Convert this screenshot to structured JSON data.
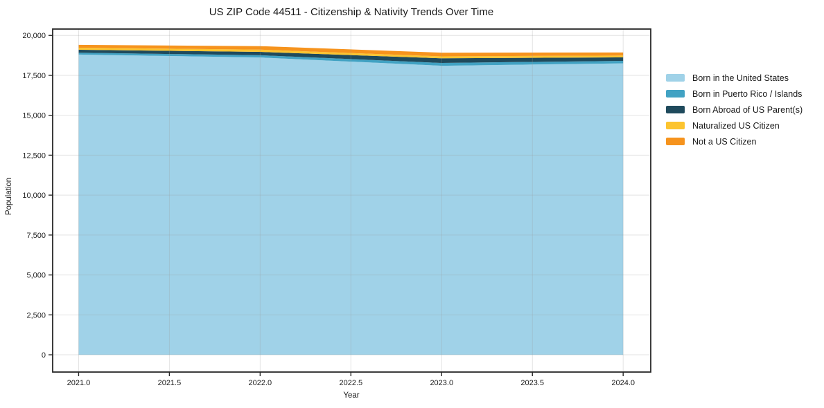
{
  "chart_data": {
    "type": "area",
    "stacked": true,
    "title": "US ZIP Code 44511 - Citizenship & Nativity Trends Over Time",
    "xlabel": "Year",
    "ylabel": "Population",
    "x": [
      2021,
      2022,
      2023,
      2024
    ],
    "series": [
      {
        "name": "Born in the United States",
        "color": "#a0d2e8",
        "values": [
          18800,
          18620,
          18100,
          18250
        ]
      },
      {
        "name": "Born in Puerto Rico / Islands",
        "color": "#41a2c3",
        "values": [
          120,
          140,
          180,
          160
        ]
      },
      {
        "name": "Born Abroad of US Parent(s)",
        "color": "#1f4a5c",
        "values": [
          180,
          210,
          290,
          220
        ]
      },
      {
        "name": "Naturalized US Citizen",
        "color": "#fcc42f",
        "values": [
          130,
          140,
          120,
          110
        ]
      },
      {
        "name": "Not a US Citizen",
        "color": "#f6931d",
        "values": [
          180,
          220,
          230,
          190
        ]
      }
    ],
    "xlim": [
      2020.857,
      2024.152
    ],
    "ylim": [
      -1080,
      20400
    ],
    "xticks": {
      "values": [
        2021.0,
        2021.5,
        2022.0,
        2022.5,
        2023.0,
        2023.5,
        2024.0
      ],
      "labels": [
        "2021.0",
        "2021.5",
        "2022.0",
        "2022.5",
        "2023.0",
        "2023.5",
        "2024.0"
      ]
    },
    "yticks": {
      "values": [
        0,
        2500,
        5000,
        7500,
        10000,
        12500,
        15000,
        17500,
        20000
      ],
      "labels": [
        "0",
        "2,500",
        "5,000",
        "7,500",
        "10,000",
        "12,500",
        "15,000",
        "17,500",
        "20,000"
      ]
    },
    "grid": true,
    "legend_position": "right"
  },
  "style": {
    "frame_color": "#262626",
    "tick_color": "#262626",
    "grid_color": "#9a9a9a",
    "grid_opacity": 0.28,
    "background": "#ffffff"
  }
}
